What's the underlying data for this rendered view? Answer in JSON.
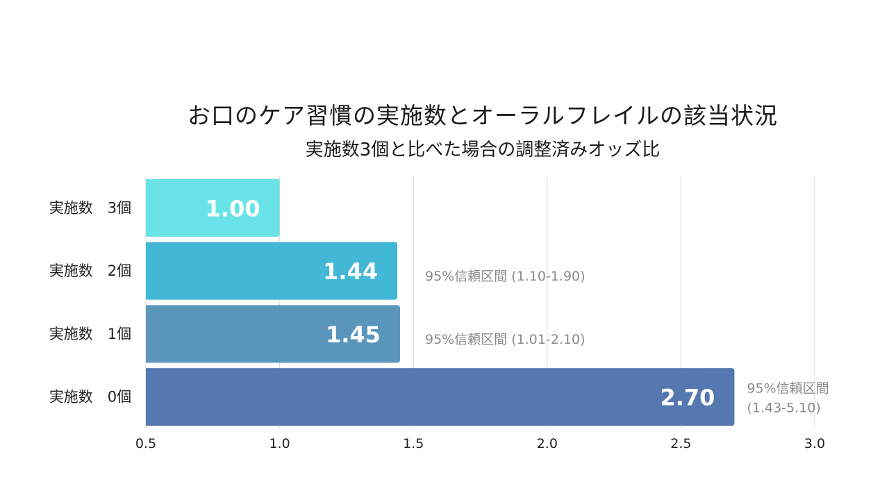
{
  "chart_data": {
    "type": "bar",
    "orientation": "horizontal",
    "title": "お口のケア習慣の実施数とオーラルフレイルの該当状況",
    "subtitle": "実施数3個と比べた場合の調整済みオッズ比",
    "xlabel": "",
    "ylabel": "",
    "xlim": [
      0.5,
      3.0
    ],
    "x_ticks": [
      "0.5",
      "1.0",
      "1.5",
      "2.0",
      "2.5",
      "3.0"
    ],
    "grid": true,
    "categories": [
      "実施数　3個",
      "実施数　2個",
      "実施数　1個",
      "実施数　0個"
    ],
    "values": [
      1.0,
      1.44,
      1.45,
      2.7
    ],
    "value_labels": [
      "1.00",
      "1.44",
      "1.45",
      "2.70"
    ],
    "ci_labels": [
      [],
      [
        "95%信頼区間 (1.10-1.90)"
      ],
      [
        "95%信頼区間 (1.01-2.10)"
      ],
      [
        "95%信頼区間",
        "(1.43-5.10)"
      ]
    ],
    "colors": [
      "#6ae3e8",
      "#43b8d6",
      "#5a96bb",
      "#5678b0"
    ],
    "grid_color": "#d9d9d9"
  }
}
